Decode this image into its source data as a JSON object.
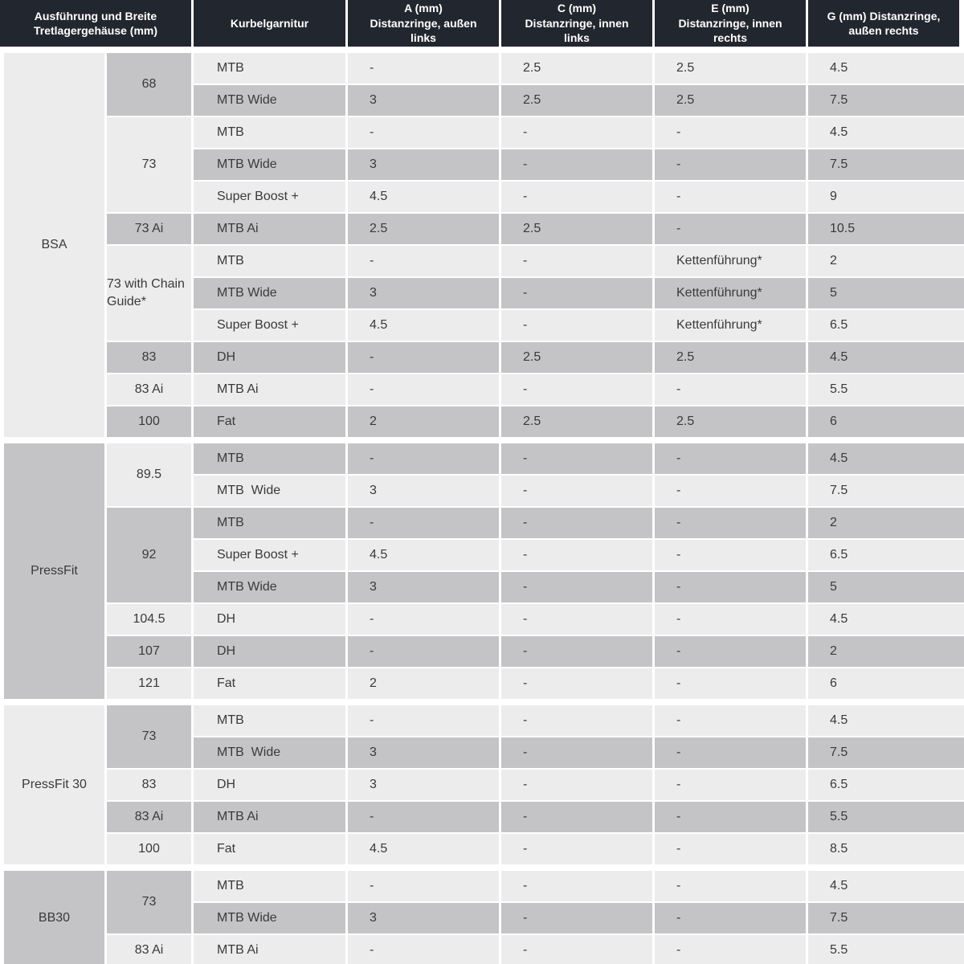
{
  "title": "Tretlager Distanzringe Tabelle",
  "colors": {
    "header_bg": "#22262e",
    "header_text": "#ffffff",
    "row_light": "#ececed",
    "row_dark": "#c4c4c6",
    "body_text": "#3a3a3a",
    "page_bg": "#ffffff"
  },
  "chart_data": {
    "type": "table",
    "columns": [
      "Ausführung und Breite\nTretlagergehäuse (mm)",
      "Kurbelgarnitur",
      "A (mm)\nDistanzringe, außen\nlinks",
      "C (mm)\nDistanzringe, innen\nlinks",
      "E (mm)\nDistanzringe, innen\nrechts",
      "G (mm) Distanzringe,\naußen rechts"
    ],
    "sections": [
      {
        "name": "BSA",
        "label_shade": "light",
        "first_row_shade": "light",
        "first_group_shade": "dark",
        "groups": [
          {
            "width": "68",
            "rows": [
              {
                "crankset": "MTB",
                "a": "-",
                "c": "2.5",
                "e": "2.5",
                "g": "4.5"
              },
              {
                "crankset": "MTB Wide",
                "a": "3",
                "c": "2.5",
                "e": "2.5",
                "g": "7.5"
              }
            ]
          },
          {
            "width": "73",
            "rows": [
              {
                "crankset": "MTB",
                "a": "-",
                "c": "-",
                "e": "-",
                "g": "4.5"
              },
              {
                "crankset": "MTB Wide",
                "a": "3",
                "c": "-",
                "e": "-",
                "g": "7.5"
              },
              {
                "crankset": "Super Boost +",
                "a": "4.5",
                "c": "-",
                "e": "-",
                "g": "9"
              }
            ]
          },
          {
            "width": "73 Ai",
            "rows": [
              {
                "crankset": "MTB Ai",
                "a": "2.5",
                "c": "2.5",
                "e": "-",
                "g": "10.5"
              }
            ]
          },
          {
            "width": "73 with Chain Guide*",
            "rows": [
              {
                "crankset": "MTB",
                "a": "-",
                "c": "-",
                "e": "Kettenführung*",
                "g": "2"
              },
              {
                "crankset": "MTB Wide",
                "a": "3",
                "c": "-",
                "e": "Kettenführung*",
                "g": "5"
              },
              {
                "crankset": "Super Boost +",
                "a": "4.5",
                "c": "-",
                "e": "Kettenführung*",
                "g": "6.5"
              }
            ]
          },
          {
            "width": "83",
            "rows": [
              {
                "crankset": "DH",
                "a": "-",
                "c": "2.5",
                "e": "2.5",
                "g": "4.5"
              }
            ]
          },
          {
            "width": "83 Ai",
            "rows": [
              {
                "crankset": "MTB Ai",
                "a": "-",
                "c": "-",
                "e": "-",
                "g": "5.5"
              }
            ]
          },
          {
            "width": "100",
            "rows": [
              {
                "crankset": "Fat",
                "a": "2",
                "c": "2.5",
                "e": "2.5",
                "g": "6"
              }
            ]
          }
        ]
      },
      {
        "name": "PressFit",
        "label_shade": "dark",
        "first_row_shade": "dark",
        "first_group_shade": "light",
        "groups": [
          {
            "width": "89.5",
            "rows": [
              {
                "crankset": "MTB",
                "a": "-",
                "c": "-",
                "e": "-",
                "g": "4.5"
              },
              {
                "crankset": "MTB  Wide",
                "a": "3",
                "c": "-",
                "e": "-",
                "g": "7.5"
              }
            ]
          },
          {
            "width": "92",
            "rows": [
              {
                "crankset": "MTB",
                "a": "-",
                "c": "-",
                "e": "-",
                "g": "2"
              },
              {
                "crankset": "Super Boost +",
                "a": "4.5",
                "c": "-",
                "e": "-",
                "g": "6.5"
              },
              {
                "crankset": "MTB Wide",
                "a": "3",
                "c": "-",
                "e": "-",
                "g": "5"
              }
            ]
          },
          {
            "width": "104.5",
            "rows": [
              {
                "crankset": "DH",
                "a": "-",
                "c": "-",
                "e": "-",
                "g": "4.5"
              }
            ]
          },
          {
            "width": "107",
            "rows": [
              {
                "crankset": "DH",
                "a": "-",
                "c": "-",
                "e": "-",
                "g": "2"
              }
            ]
          },
          {
            "width": "121",
            "rows": [
              {
                "crankset": "Fat",
                "a": "2",
                "c": "-",
                "e": "-",
                "g": "6"
              }
            ]
          }
        ]
      },
      {
        "name": "PressFit 30",
        "label_shade": "light",
        "first_row_shade": "light",
        "first_group_shade": "dark",
        "groups": [
          {
            "width": "73",
            "rows": [
              {
                "crankset": "MTB",
                "a": "-",
                "c": "-",
                "e": "-",
                "g": "4.5"
              },
              {
                "crankset": "MTB  Wide",
                "a": "3",
                "c": "-",
                "e": "-",
                "g": "7.5"
              }
            ]
          },
          {
            "width": "83",
            "rows": [
              {
                "crankset": "DH",
                "a": "3",
                "c": "-",
                "e": "-",
                "g": "6.5"
              }
            ]
          },
          {
            "width": "83 Ai",
            "rows": [
              {
                "crankset": "MTB Ai",
                "a": "-",
                "c": "-",
                "e": "-",
                "g": "5.5"
              }
            ]
          },
          {
            "width": "100",
            "rows": [
              {
                "crankset": "Fat",
                "a": "4.5",
                "c": "-",
                "e": "-",
                "g": "8.5"
              }
            ]
          }
        ]
      },
      {
        "name": "BB30",
        "label_shade": "dark",
        "first_row_shade": "light",
        "first_group_shade": "dark",
        "groups": [
          {
            "width": "73",
            "rows": [
              {
                "crankset": "MTB",
                "a": "-",
                "c": "-",
                "e": "-",
                "g": "4.5"
              },
              {
                "crankset": "MTB Wide",
                "a": "3",
                "c": "-",
                "e": "-",
                "g": "7.5"
              }
            ]
          },
          {
            "width": "83 Ai",
            "rows": [
              {
                "crankset": "MTB Ai",
                "a": "-",
                "c": "-",
                "e": "-",
                "g": "5.5"
              }
            ]
          }
        ]
      }
    ]
  }
}
